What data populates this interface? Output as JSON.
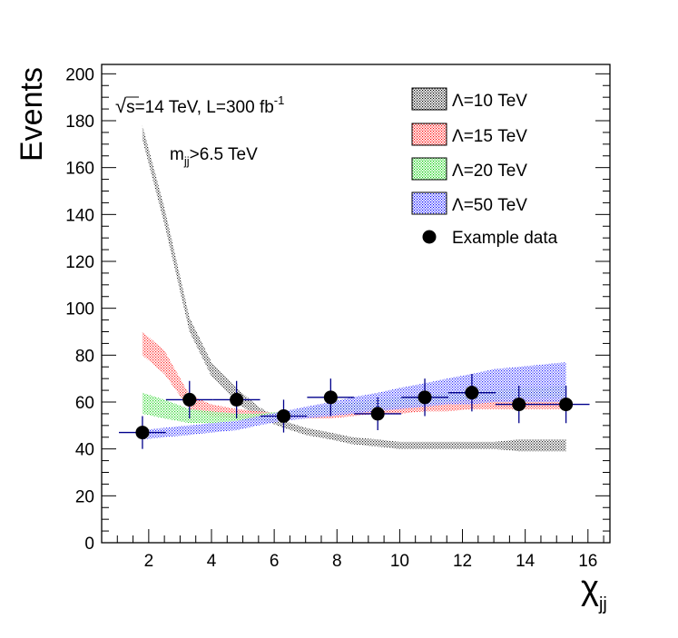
{
  "chart_data": {
    "type": "scatter",
    "title": "",
    "xlabel": "χ",
    "xlabel_sub": "jj",
    "ylabel": "Events",
    "xlim": [
      0.5,
      16.7
    ],
    "ylim": [
      0,
      204
    ],
    "x_ticks": [
      2,
      4,
      6,
      8,
      10,
      12,
      14,
      16
    ],
    "y_ticks": [
      0,
      20,
      40,
      60,
      80,
      100,
      120,
      140,
      160,
      180,
      200
    ],
    "annotation_energy": {
      "sqrt": "√",
      "text": "s=14 TeV, L=300 fb",
      "sup": "-1"
    },
    "annotation_mass": {
      "m": "m",
      "sub": "jj",
      "text": ">6.5 TeV"
    },
    "legend": {
      "lambda10": "Λ=10 TeV",
      "lambda15": "Λ=15 TeV",
      "lambda20": "Λ=20 TeV",
      "lambda50": "Λ=50 TeV",
      "data": "Example data"
    },
    "colors": {
      "lambda10": "#000000",
      "lambda15": "#ff0000",
      "lambda20": "#00cc00",
      "lambda50": "#0000ff",
      "data": "#000000",
      "errorbar": "#00008b"
    },
    "bands": [
      {
        "name": "Λ=10 TeV",
        "key": "lambda10",
        "x": [
          1.8,
          2.5,
          3.3,
          4.0,
          4.8,
          5.5,
          6.3,
          7.0,
          7.8,
          8.5,
          9.3,
          10.0,
          10.8,
          11.5,
          12.3,
          13.0,
          13.8,
          14.5,
          15.3
        ],
        "low": [
          172,
          136,
          90,
          71,
          60,
          53,
          49,
          46,
          44,
          42,
          41,
          40,
          40,
          40,
          40,
          40,
          39,
          39,
          39
        ],
        "high": [
          178,
          143,
          96,
          77,
          66,
          58,
          52,
          49,
          47,
          45,
          44,
          43,
          43,
          43,
          43,
          43,
          44,
          44,
          44
        ]
      },
      {
        "name": "Λ=15 TeV",
        "key": "lambda15",
        "x": [
          1.8,
          2.5,
          3.3,
          4.0,
          4.8,
          5.5,
          6.3,
          7.0,
          7.8,
          8.5,
          9.3,
          10.0,
          10.8,
          11.5,
          12.3,
          13.0,
          13.8,
          14.5,
          15.3
        ],
        "low": [
          80,
          72,
          57,
          54,
          53,
          53,
          53,
          53,
          53,
          54,
          55,
          55,
          56,
          56,
          57,
          57,
          57,
          57,
          57
        ],
        "high": [
          90,
          82,
          63,
          59,
          57,
          56,
          55,
          56,
          56,
          57,
          58,
          59,
          60,
          60,
          61,
          61,
          61,
          61,
          61
        ]
      },
      {
        "name": "Λ=20 TeV",
        "key": "lambda20",
        "x": [
          1.8,
          2.5,
          3.3,
          4.0,
          4.8,
          5.5,
          6.3,
          7.0,
          7.8,
          8.5,
          9.3,
          10.0,
          10.8,
          11.5,
          12.3,
          13.0,
          13.8,
          14.5,
          15.3
        ],
        "low": [
          55,
          53,
          51,
          51,
          52,
          52,
          53,
          54,
          55,
          56,
          57,
          58,
          59,
          60,
          61,
          61,
          62,
          62,
          62
        ],
        "high": [
          64,
          61,
          57,
          56,
          55,
          55,
          56,
          57,
          59,
          60,
          61,
          62,
          63,
          64,
          65,
          65,
          66,
          66,
          67
        ]
      },
      {
        "name": "Λ=50 TeV",
        "key": "lambda50",
        "x": [
          1.8,
          2.5,
          3.3,
          4.0,
          4.8,
          5.5,
          6.3,
          7.0,
          7.8,
          8.5,
          9.3,
          10.0,
          10.8,
          11.5,
          12.3,
          13.0,
          13.8,
          14.5,
          15.3
        ],
        "low": [
          44,
          45,
          46,
          47,
          48,
          50,
          52,
          53,
          54,
          55,
          56,
          57,
          58,
          59,
          59,
          60,
          60,
          60,
          60
        ],
        "high": [
          48,
          49,
          50,
          51,
          52,
          54,
          56,
          58,
          60,
          62,
          64,
          66,
          68,
          70,
          72,
          74,
          75,
          76,
          77
        ]
      }
    ],
    "series": [
      {
        "name": "Example data",
        "x": [
          1.8,
          3.3,
          4.8,
          6.3,
          7.8,
          9.3,
          10.8,
          12.3,
          13.8,
          15.3
        ],
        "y": [
          47,
          61,
          61,
          54,
          62,
          55,
          62,
          64,
          59,
          59
        ],
        "xerr": [
          0.75,
          0.75,
          0.75,
          0.75,
          0.75,
          0.75,
          0.75,
          0.75,
          0.75,
          0.75
        ],
        "yerr": [
          7,
          8,
          8,
          7,
          8,
          7,
          8,
          8,
          8,
          8
        ]
      }
    ]
  }
}
